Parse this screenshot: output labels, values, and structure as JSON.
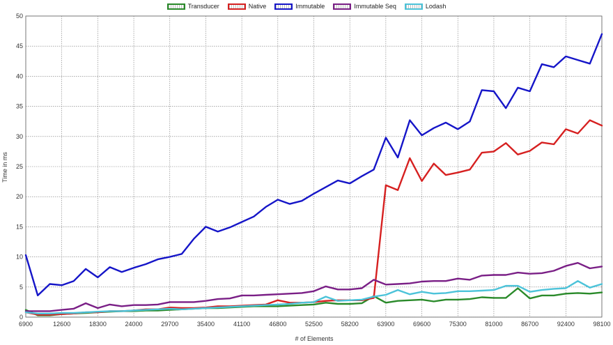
{
  "chart_data": {
    "type": "line",
    "title": "",
    "xlabel": "# of Elements",
    "ylabel": "Time in ms",
    "ylim": [
      0,
      50
    ],
    "yticks": [
      "0",
      "5",
      "10",
      "15",
      "20",
      "25",
      "30",
      "35",
      "40",
      "45",
      "50"
    ],
    "xtick_labels": [
      "6900",
      "12600",
      "18300",
      "24000",
      "29700",
      "35400",
      "41100",
      "46800",
      "52500",
      "58200",
      "63900",
      "69600",
      "75300",
      "81000",
      "86700",
      "92400",
      "98100"
    ],
    "legend_position": "top",
    "grid": true,
    "x": [
      6900,
      8800,
      10700,
      12600,
      14500,
      16400,
      18300,
      20200,
      22100,
      24000,
      25900,
      27800,
      29700,
      31600,
      33500,
      35400,
      37300,
      39200,
      41100,
      43000,
      44900,
      46800,
      48700,
      50600,
      52500,
      54400,
      56300,
      58200,
      60100,
      62000,
      63900,
      65800,
      67700,
      69600,
      71500,
      73400,
      75300,
      77200,
      79100,
      81000,
      82900,
      84800,
      86700,
      88600,
      90500,
      92400,
      94300,
      96200,
      98100
    ],
    "series": [
      {
        "name": "Transducer",
        "color": "#2a8a2a",
        "values": [
          1.2,
          0.3,
          0.3,
          0.5,
          0.6,
          0.7,
          0.8,
          0.9,
          1.0,
          1.0,
          1.1,
          1.1,
          1.2,
          1.3,
          1.4,
          1.5,
          1.5,
          1.6,
          1.7,
          1.8,
          1.8,
          1.8,
          1.9,
          2.0,
          2.1,
          2.4,
          2.2,
          2.2,
          2.3,
          3.5,
          2.4,
          2.7,
          2.8,
          2.9,
          2.6,
          2.9,
          2.9,
          3.0,
          3.3,
          3.2,
          3.2,
          4.8,
          3.1,
          3.6,
          3.6,
          3.9,
          4.0,
          3.9,
          4.1
        ]
      },
      {
        "name": "Native",
        "color": "#d62020",
        "values": [
          0.8,
          0.4,
          0.4,
          0.5,
          0.6,
          0.8,
          0.8,
          1.0,
          1.0,
          1.1,
          1.3,
          1.3,
          1.6,
          1.5,
          1.5,
          1.6,
          1.8,
          1.8,
          1.9,
          2.0,
          2.1,
          2.8,
          2.4,
          2.4,
          2.5,
          2.7,
          2.8,
          2.8,
          2.8,
          3.2,
          21.9,
          21.1,
          26.4,
          22.6,
          25.5,
          23.6,
          24.0,
          24.5,
          27.3,
          27.5,
          28.9,
          27.0,
          27.6,
          29.0,
          28.7,
          31.2,
          30.5,
          32.7,
          31.8
        ]
      },
      {
        "name": "Immutable",
        "color": "#1515c8",
        "values": [
          10.3,
          3.6,
          5.5,
          5.3,
          6.0,
          8.0,
          6.6,
          8.3,
          7.5,
          8.2,
          8.8,
          9.6,
          10.0,
          10.5,
          13.0,
          15.0,
          14.2,
          14.9,
          15.8,
          16.7,
          18.3,
          19.5,
          18.8,
          19.3,
          20.5,
          21.6,
          22.7,
          22.2,
          23.4,
          24.5,
          29.8,
          26.5,
          32.7,
          30.2,
          31.4,
          32.3,
          31.2,
          32.5,
          37.7,
          37.5,
          34.7,
          38.1,
          37.5,
          42.0,
          41.5,
          43.3,
          42.7,
          42.1,
          47.0
        ]
      },
      {
        "name": "Immutable Seq",
        "color": "#7a1f86",
        "values": [
          1.0,
          1.0,
          1.0,
          1.2,
          1.4,
          2.3,
          1.5,
          2.1,
          1.8,
          2.0,
          2.0,
          2.1,
          2.5,
          2.5,
          2.5,
          2.7,
          3.0,
          3.1,
          3.6,
          3.6,
          3.7,
          3.8,
          3.9,
          4.0,
          4.3,
          5.1,
          4.6,
          4.6,
          4.8,
          6.2,
          5.4,
          5.5,
          5.6,
          5.9,
          6.0,
          6.0,
          6.4,
          6.2,
          6.9,
          7.0,
          7.0,
          7.4,
          7.2,
          7.3,
          7.7,
          8.5,
          9.0,
          8.1,
          8.4
        ]
      },
      {
        "name": "Lodash",
        "color": "#4cc3d9",
        "values": [
          0.8,
          0.6,
          0.6,
          0.7,
          0.7,
          0.8,
          0.9,
          1.0,
          1.0,
          1.1,
          1.2,
          1.3,
          1.4,
          1.3,
          1.4,
          1.5,
          1.6,
          1.7,
          1.8,
          1.9,
          2.0,
          2.1,
          2.2,
          2.4,
          2.5,
          3.4,
          2.7,
          2.8,
          2.9,
          3.4,
          3.7,
          4.5,
          3.8,
          4.2,
          3.9,
          4.0,
          4.3,
          4.3,
          4.4,
          4.5,
          5.2,
          5.2,
          4.2,
          4.5,
          4.7,
          4.8,
          6.0,
          4.9,
          5.5
        ]
      }
    ]
  }
}
